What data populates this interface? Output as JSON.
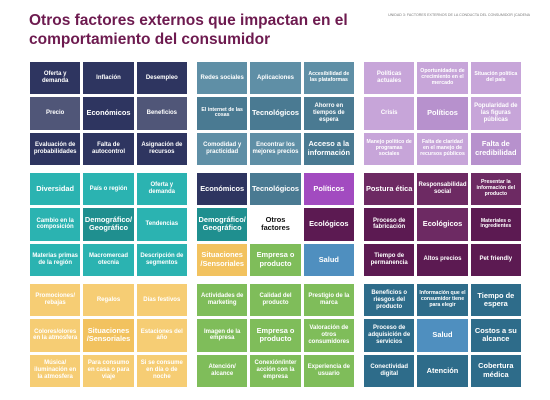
{
  "header": {
    "title": "Otros factores externos que impactan en el comportamiento del consumidor",
    "subtitle": "Unidad 3: factores externos de la conducta del consumidor (Cadena"
  },
  "blocks": [
    {
      "id": "economicos",
      "cells": [
        "Oferta y demanda",
        "Inflación",
        "Desempleo",
        "Precio",
        "Económicos",
        "Beneficios",
        "Evaluación de probabilidades",
        "Falta de autocontrol",
        "Asignación de recursos"
      ],
      "classes": [
        "navy",
        "navy",
        "navy",
        "navy-l",
        "navy center",
        "navy-l",
        "navy",
        "navy",
        "navy"
      ]
    },
    {
      "id": "tecnologicos",
      "cells": [
        "Redes sociales",
        "Aplicaciones",
        "Accesibilidad de las plataformas",
        "El internet de las cosas",
        "Tecnológicos",
        "Ahorro en tiempos de espera",
        "Comodidad y practicidad",
        "Encontrar los mejores precios",
        "Acceso a la información"
      ],
      "classes": [
        "blue",
        "blue",
        "blue small",
        "blue-d small",
        "blue-d center",
        "blue-d",
        "blue",
        "blue",
        "blue-d center"
      ]
    },
    {
      "id": "politicos",
      "cells": [
        "Políticas actuales",
        "Oportunidades de crecimiento en el mercado",
        "Situación política del país",
        "Crisis",
        "Políticos",
        "Popularidad de las figuras públicas",
        "Manejo político de programas sociales",
        "Falta de claridad en el manejo de recursos públicos",
        "Falta de credibilidad"
      ],
      "classes": [
        "lilac",
        "lilac small",
        "lilac small",
        "lilac",
        "lilac-d center",
        "lilac",
        "lilac small",
        "lilac small",
        "lilac-d center"
      ]
    },
    {
      "id": "demograficos",
      "cells": [
        "Diversidad",
        "País o región",
        "Oferta y demanda",
        "Cambio en la composición",
        "Demográfico/ Geográfico",
        "Tendencias",
        "Materias primas de la región",
        "Macromercad otecnia",
        "Descripción de segmentos"
      ],
      "classes": [
        "teal center",
        "teal",
        "teal",
        "teal",
        "teal-d center",
        "teal",
        "teal",
        "teal",
        "teal"
      ]
    },
    {
      "id": "centro",
      "cells": [
        "Económicos",
        "Tecnológicos",
        "Políticos",
        "Demográfico/ Geográfico",
        "Otros factores",
        "Ecológicos",
        "Situaciones /Sensoriales",
        "Empresa o producto",
        "Salud"
      ],
      "classes": [
        "navy center",
        "blue-d center",
        "purple center",
        "teal-d center",
        "white center",
        "plum center",
        "gold-d center",
        "green center",
        "bluecenter center"
      ]
    },
    {
      "id": "ecologicos",
      "cells": [
        "Postura ética",
        "Responsabilidad social",
        "Presentar la información del producto",
        "Proceso de fabricación",
        "Ecológicos",
        "Materiales o ingredientes",
        "Tiempo de permanencia",
        "Altos precios",
        "Pet friendly"
      ],
      "classes": [
        "plum-l center",
        "plum-l",
        "plum-l small",
        "plum",
        "plum-l center",
        "plum small",
        "plum",
        "plum",
        "plum"
      ]
    },
    {
      "id": "sensoriales",
      "cells": [
        "Promociones/ rebajas",
        "Regalos",
        "Días festivos",
        "Colores/olores en la atmosfera",
        "Situaciones /Sensoriales",
        "Estaciones del año",
        "Música/ iluminación en la atmosfera",
        "Para consumo en casa o para viaje",
        "Si se consume en día o de noche"
      ],
      "classes": [
        "gold",
        "gold",
        "gold",
        "gold",
        "gold-d center",
        "gold",
        "gold",
        "gold",
        "gold"
      ]
    },
    {
      "id": "empresa",
      "cells": [
        "Actividades de marketing",
        "Calidad del producto",
        "Prestigio de la marca",
        "Imagen de la empresa",
        "Empresa o producto",
        "Valoración de otros consumidores",
        "Atención/ alcance",
        "Conexión/inter acción con la empresa",
        "Experiencia de usuario"
      ],
      "classes": [
        "green",
        "green",
        "green",
        "green",
        "green center",
        "green",
        "green",
        "green",
        "green"
      ]
    },
    {
      "id": "salud",
      "cells": [
        "Beneficios o riesgos del producto",
        "Información que el consumidor tiene para elegir",
        "Tiempo de espera",
        "Proceso de adquisición de servicios",
        "Salud",
        "Costos a su alcance",
        "Conectividad digital",
        "Atención",
        "Cobertura médica"
      ],
      "classes": [
        "tealcenter",
        "tealcenter small",
        "tealcenter center",
        "tealcenter",
        "bluecenter center",
        "tealcenter center",
        "tealcenter",
        "tealcenter center",
        "tealcenter center"
      ]
    }
  ]
}
